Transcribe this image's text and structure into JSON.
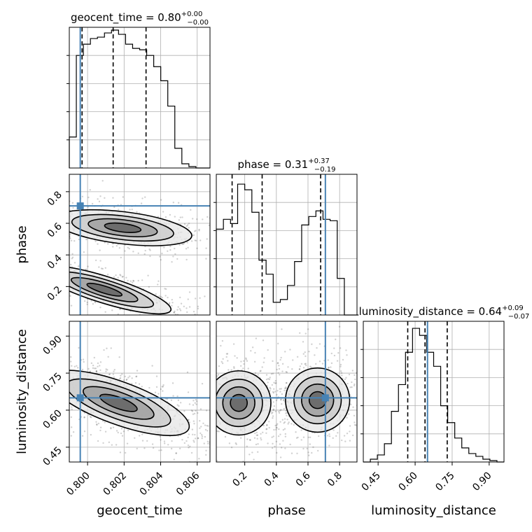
{
  "chart_data": {
    "type": "corner",
    "parameters": [
      "geocent_time",
      "phase",
      "luminosity_distance"
    ],
    "truths": {
      "geocent_time": 0.7996,
      "phase": 0.71,
      "luminosity_distance": 0.65
    },
    "truth_color": "#4682b4",
    "titles": {
      "geocent_time": {
        "prefix": "geocent_time = 0.80",
        "plus": "+0.00",
        "minus": "−0.00"
      },
      "phase": {
        "prefix": "phase = 0.31",
        "plus": "+0.37",
        "minus": "−0.19"
      },
      "luminosity_distance": {
        "prefix": "luminosity_distance = 0.64",
        "plus": "+0.09",
        "minus": "−0.07"
      }
    },
    "ranges": {
      "geocent_time": [
        0.799,
        0.8067
      ],
      "phase": [
        0.02,
        0.91
      ],
      "luminosity_distance": [
        0.39,
        0.96
      ]
    },
    "ticks": {
      "geocent_time": [
        "0.800",
        "0.802",
        "0.804",
        "0.806"
      ],
      "phase_y": [
        "0.2",
        "0.4",
        "0.6",
        "0.8"
      ],
      "phase_x": [
        "0.2",
        "0.4",
        "0.6",
        "0.8"
      ],
      "luminosity_distance_y": [
        "0.45",
        "0.60",
        "0.75",
        "0.90"
      ],
      "luminosity_distance_x": [
        "0.45",
        "0.60",
        "0.75",
        "0.90"
      ]
    },
    "tick_values": {
      "geocent_time": [
        0.8,
        0.802,
        0.804,
        0.806
      ],
      "phase": [
        0.2,
        0.4,
        0.6,
        0.8
      ],
      "luminosity_distance": [
        0.45,
        0.6,
        0.75,
        0.9
      ]
    },
    "quantile_lines": {
      "geocent_time": [
        0.7997,
        0.8014,
        0.8032
      ],
      "phase": [
        0.12,
        0.31,
        0.68
      ],
      "luminosity_distance": [
        0.57,
        0.64,
        0.73
      ]
    },
    "histograms": {
      "geocent_time": {
        "start": 0.799,
        "bin_width": 0.000385,
        "counts": [
          0.22,
          0.8,
          0.88,
          0.92,
          0.93,
          0.96,
          0.98,
          0.95,
          0.88,
          0.85,
          0.84,
          0.8,
          0.72,
          0.62,
          0.44,
          0.14,
          0.03,
          0.01,
          0.0,
          0.0
        ]
      },
      "phase": {
        "start": 0.02,
        "bin_width": 0.045,
        "counts": [
          0.61,
          0.68,
          0.65,
          0.93,
          0.89,
          0.73,
          0.39,
          0.29,
          0.09,
          0.11,
          0.21,
          0.38,
          0.64,
          0.7,
          0.74,
          0.68,
          0.67,
          0.26,
          0.0,
          0.0
        ]
      },
      "luminosity_distance": {
        "start": 0.39,
        "bin_width": 0.0285,
        "counts": [
          0.0,
          0.02,
          0.05,
          0.13,
          0.36,
          0.55,
          0.78,
          0.95,
          0.9,
          0.78,
          0.68,
          0.4,
          0.28,
          0.17,
          0.1,
          0.06,
          0.04,
          0.02,
          0.01,
          0.0
        ]
      }
    },
    "labels": {
      "x": [
        "geocent_time",
        "phase",
        "luminosity_distance"
      ],
      "y": [
        "phase",
        "luminosity_distance"
      ]
    },
    "grid": true
  }
}
